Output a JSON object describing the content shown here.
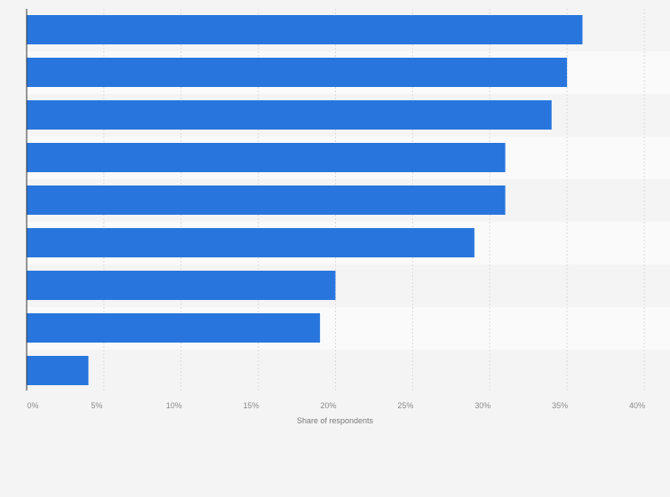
{
  "chart_data": {
    "type": "bar",
    "orientation": "horizontal",
    "title": "",
    "xlabel": "Share of respondents",
    "ylabel": "",
    "categories": [
      "",
      "",
      "",
      "",
      "",
      "",
      "",
      "",
      ""
    ],
    "values": [
      36,
      35,
      34,
      31,
      31,
      29,
      20,
      19,
      4
    ],
    "unit": "%",
    "xlim": [
      0,
      40
    ],
    "ticks": [
      "0%",
      "5%",
      "10%",
      "15%",
      "20%",
      "25%",
      "30%",
      "35%",
      "40%"
    ],
    "grid": true,
    "colors": {
      "bar": "#2876dd",
      "band_a": "#f4f4f4",
      "band_b": "#fafafa",
      "grid": "#dcdcdc",
      "axis": "#333333"
    }
  }
}
